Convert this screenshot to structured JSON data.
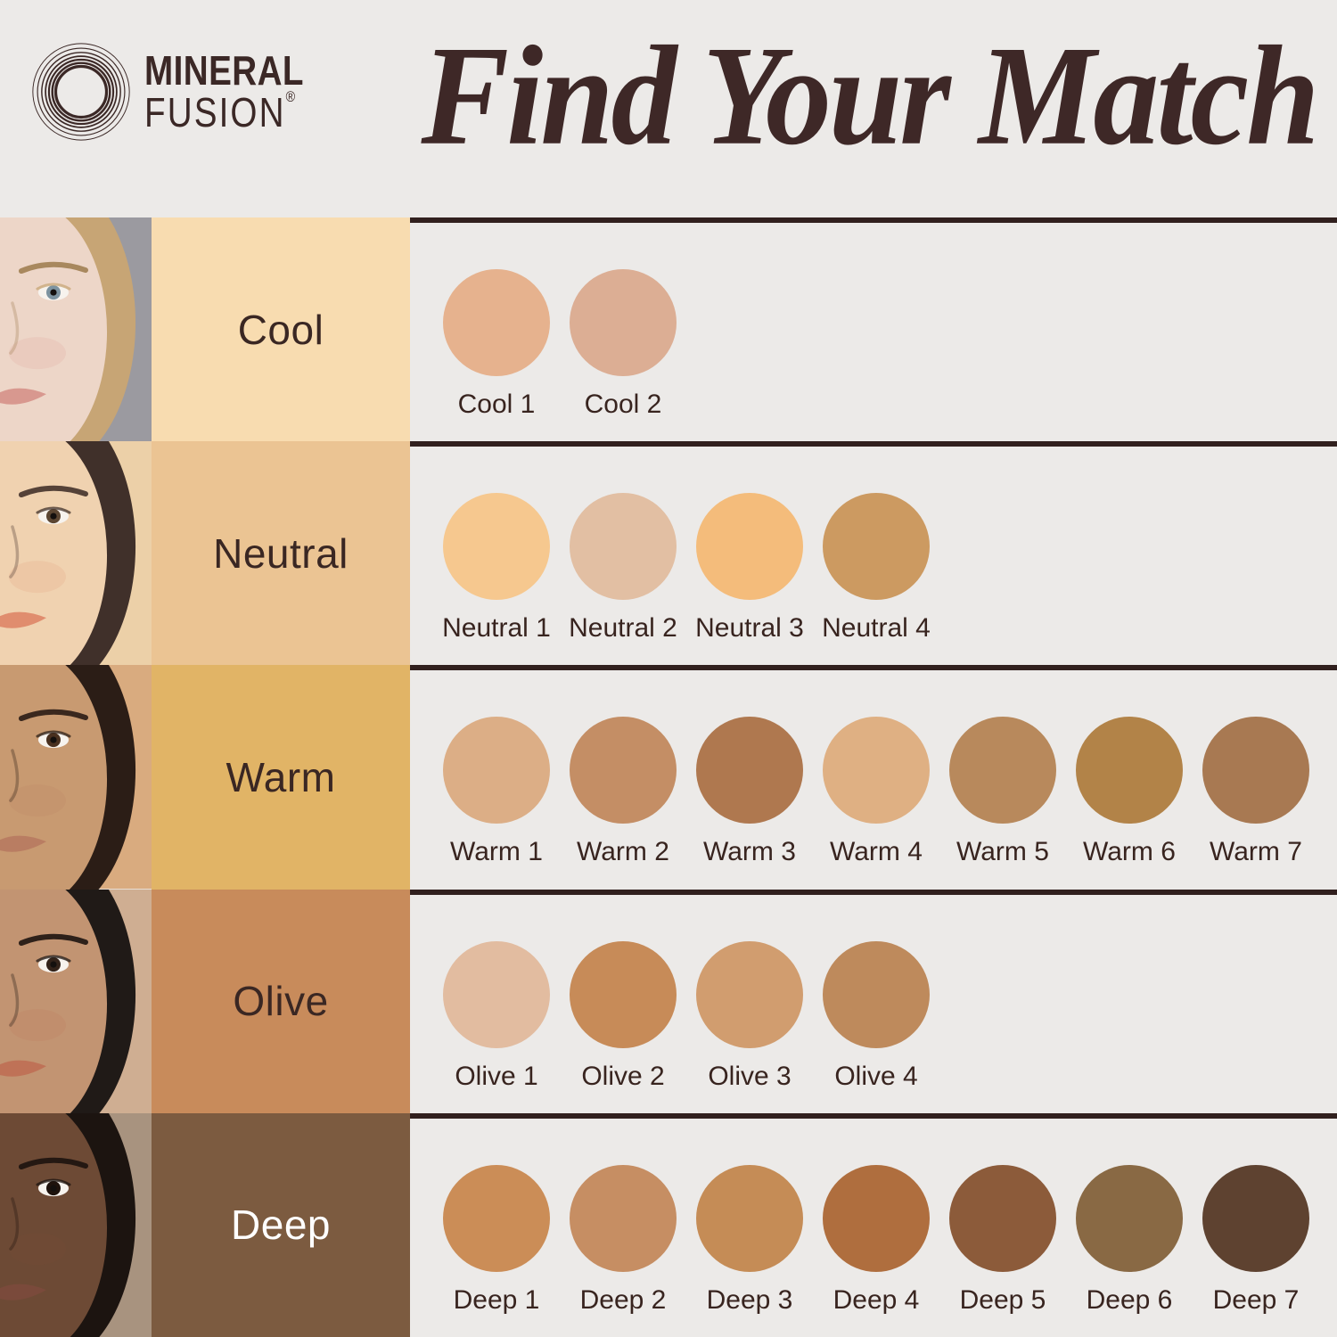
{
  "page": {
    "background": "#ECEAE8",
    "divider_color": "#31201E"
  },
  "header": {
    "logo": {
      "icon": "concentric-circles-logo-icon",
      "line1": "MINERAL",
      "line2": "FUSION",
      "registered_mark": "®",
      "color": "#3B2826"
    },
    "title": {
      "text": "Find Your Match",
      "color": "#3E2827"
    }
  },
  "rows": [
    {
      "id": "cool",
      "label": "Cool",
      "label_bg": "#F8DCB0",
      "label_color": "#3A2723",
      "photo": {
        "bg": "#9B9AA0",
        "skin": "#EDD6C8",
        "hair": "#C7A575",
        "brow": "#A8885E",
        "iris": "#7D93A0",
        "lips": "#D8988F"
      },
      "swatches": [
        {
          "name": "Cool 1",
          "color": "#E6B28E"
        },
        {
          "name": "Cool 2",
          "color": "#DCAE94"
        }
      ]
    },
    {
      "id": "neutral",
      "label": "Neutral",
      "label_bg": "#EBC493",
      "label_color": "#3A2723",
      "photo": {
        "bg": "#ECD0A8",
        "skin": "#F0D2B0",
        "hair": "#40302A",
        "brow": "#554238",
        "iris": "#5C4632",
        "lips": "#E08D6E"
      },
      "swatches": [
        {
          "name": "Neutral 1",
          "color": "#F6C88F"
        },
        {
          "name": "Neutral 2",
          "color": "#E2BFA3"
        },
        {
          "name": "Neutral 3",
          "color": "#F4BC7B"
        },
        {
          "name": "Neutral 4",
          "color": "#CC9A61"
        }
      ]
    },
    {
      "id": "warm",
      "label": "Warm",
      "label_bg": "#E1B466",
      "label_color": "#3A2723",
      "photo": {
        "bg": "#D9AB7F",
        "skin": "#C89A71",
        "hair": "#2B1D16",
        "brow": "#3A281E",
        "iris": "#49301F",
        "lips": "#B97D62"
      },
      "swatches": [
        {
          "name": "Warm 1",
          "color": "#DCAE86"
        },
        {
          "name": "Warm 2",
          "color": "#C48E65"
        },
        {
          "name": "Warm 3",
          "color": "#AF784F"
        },
        {
          "name": "Warm 4",
          "color": "#DFB083"
        },
        {
          "name": "Warm 5",
          "color": "#B8895C"
        },
        {
          "name": "Warm 6",
          "color": "#B28348"
        },
        {
          "name": "Warm 7",
          "color": "#A87952"
        }
      ]
    },
    {
      "id": "olive",
      "label": "Olive",
      "label_bg": "#C88B5B",
      "label_color": "#3A2723",
      "photo": {
        "bg": "#CFAE92",
        "skin": "#C29472",
        "hair": "#201A17",
        "brow": "#2E211A",
        "iris": "#33231A",
        "lips": "#BF7257"
      },
      "swatches": [
        {
          "name": "Olive 1",
          "color": "#E2BCA0"
        },
        {
          "name": "Olive 2",
          "color": "#C78B58"
        },
        {
          "name": "Olive 3",
          "color": "#D19D6F"
        },
        {
          "name": "Olive 4",
          "color": "#BE8A5C"
        }
      ]
    },
    {
      "id": "deep",
      "label": "Deep",
      "label_bg": "#7C5B40",
      "label_color": "#FFFFFF",
      "photo": {
        "bg": "#A8937F",
        "skin": "#6D4A35",
        "hair": "#1C1410",
        "brow": "#241812",
        "iris": "#1E120C",
        "lips": "#7A4A3B"
      },
      "swatches": [
        {
          "name": "Deep 1",
          "color": "#CB8D57"
        },
        {
          "name": "Deep 2",
          "color": "#C68E63"
        },
        {
          "name": "Deep 3",
          "color": "#C58C56"
        },
        {
          "name": "Deep 4",
          "color": "#AF6E3E"
        },
        {
          "name": "Deep 5",
          "color": "#8C5B3A"
        },
        {
          "name": "Deep 6",
          "color": "#896944"
        },
        {
          "name": "Deep 7",
          "color": "#5E4230"
        }
      ]
    }
  ]
}
